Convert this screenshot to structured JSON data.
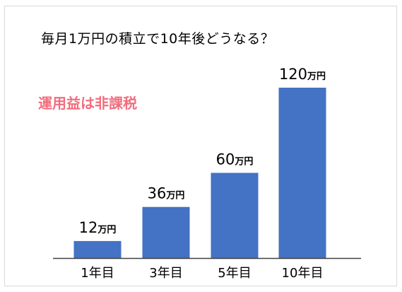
{
  "chart_data": {
    "type": "bar",
    "title": "毎月1万円の積立で10年後どうなる？",
    "annotation": "運用益は非課税",
    "categories": [
      "1年目",
      "3年目",
      "5年目",
      "10年目"
    ],
    "values": [
      12,
      36,
      60,
      120
    ],
    "unit": "万円",
    "ylim": [
      0,
      120
    ],
    "grid": false,
    "legend": "none",
    "colors": {
      "bar": "#4472c4",
      "annotation": "#f26d7d",
      "axis": "#404040",
      "text": "#000000"
    }
  }
}
